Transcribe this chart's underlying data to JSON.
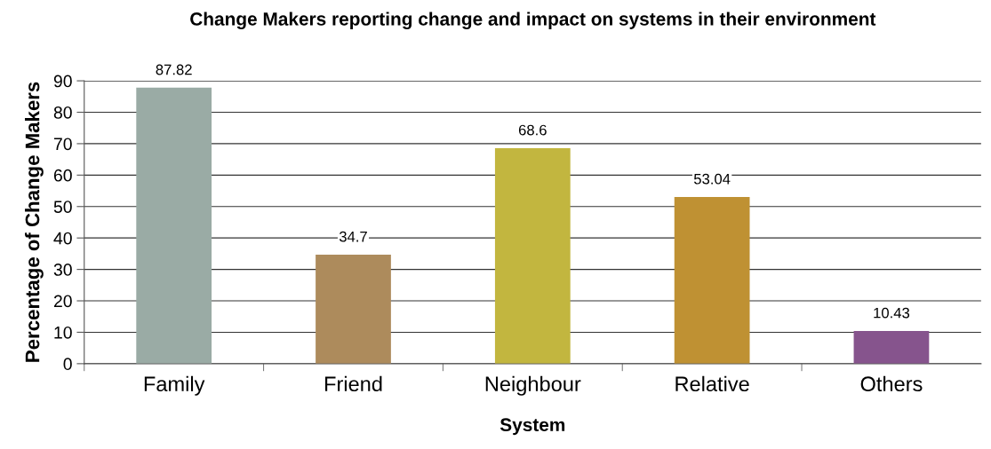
{
  "chart_data": {
    "type": "bar",
    "title": "Change Makers reporting change and impact on systems in their environment",
    "xlabel": "System",
    "ylabel": "Percentage of Change Makers",
    "categories": [
      "Family",
      "Friend",
      "Neighbour",
      "Relative",
      "Others"
    ],
    "values": [
      87.82,
      34.7,
      68.6,
      53.04,
      10.43
    ],
    "colors": [
      "#9aaba5",
      "#ad8b5c",
      "#c2b63f",
      "#bf9133",
      "#86548d"
    ],
    "ylim": [
      0,
      90
    ],
    "yticks": [
      0,
      10,
      20,
      30,
      40,
      50,
      60,
      70,
      80,
      90
    ],
    "grid": "y",
    "data_labels": true
  }
}
